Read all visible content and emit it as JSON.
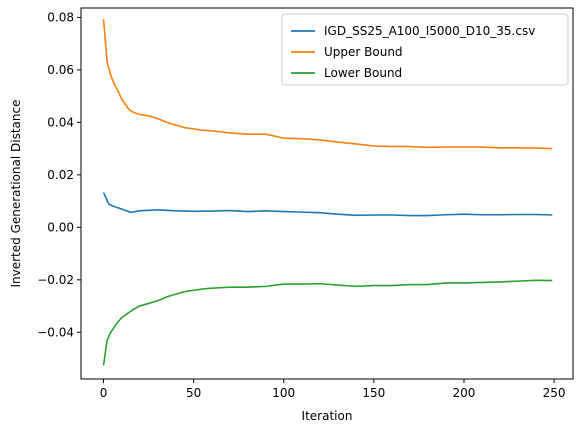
{
  "chart_data": {
    "type": "line",
    "title": "",
    "xlabel": "Iteration",
    "ylabel": "Inverted Generational Distance",
    "xlim": [
      -12.5,
      260.5
    ],
    "ylim": [
      -0.0578,
      0.0836
    ],
    "xticks": [
      0,
      50,
      100,
      150,
      200,
      250
    ],
    "yticks": [
      -0.04,
      -0.02,
      0.0,
      0.02,
      0.04,
      0.06,
      0.08
    ],
    "ytick_labels": [
      "−0.04",
      "−0.02",
      "0.00",
      "0.02",
      "0.04",
      "0.06",
      "0.08"
    ],
    "grid": false,
    "legend_position": "top-right",
    "series": [
      {
        "name": "IGD_SS25_A100_I5000_D10_35.csv",
        "color": "#1f77b4",
        "x": [
          0,
          3,
          5,
          10,
          15,
          20,
          30,
          40,
          50,
          60,
          70,
          80,
          90,
          100,
          110,
          120,
          130,
          140,
          150,
          160,
          170,
          180,
          190,
          200,
          210,
          220,
          230,
          240,
          249
        ],
        "y": [
          0.0133,
          0.0088,
          0.0082,
          0.007,
          0.0057,
          0.0063,
          0.0067,
          0.0063,
          0.0061,
          0.0062,
          0.0064,
          0.006,
          0.0063,
          0.006,
          0.0058,
          0.0056,
          0.005,
          0.0046,
          0.0047,
          0.0047,
          0.0045,
          0.0045,
          0.0048,
          0.005,
          0.0048,
          0.0048,
          0.0049,
          0.0049,
          0.0047
        ]
      },
      {
        "name": "Upper Bound",
        "color": "#ff7f0e",
        "x": [
          0,
          2,
          4,
          6,
          8,
          10,
          12,
          14,
          16,
          20,
          25,
          30,
          35,
          40,
          45,
          50,
          55,
          60,
          70,
          80,
          90,
          100,
          110,
          120,
          130,
          140,
          150,
          160,
          170,
          180,
          190,
          200,
          210,
          220,
          230,
          240,
          249
        ],
        "y": [
          0.0793,
          0.063,
          0.058,
          0.0545,
          0.052,
          0.049,
          0.047,
          0.045,
          0.044,
          0.043,
          0.0425,
          0.0415,
          0.04,
          0.039,
          0.038,
          0.0375,
          0.037,
          0.0368,
          0.036,
          0.0355,
          0.0355,
          0.034,
          0.0338,
          0.0333,
          0.0325,
          0.0318,
          0.031,
          0.0308,
          0.0308,
          0.0305,
          0.0306,
          0.0306,
          0.0306,
          0.0303,
          0.0303,
          0.0302,
          0.03
        ]
      },
      {
        "name": "Lower Bound",
        "color": "#2ca02c",
        "x": [
          0,
          2,
          4,
          6,
          8,
          10,
          12,
          14,
          16,
          20,
          25,
          30,
          35,
          40,
          45,
          50,
          55,
          60,
          70,
          80,
          90,
          100,
          110,
          120,
          130,
          140,
          150,
          160,
          170,
          180,
          190,
          200,
          210,
          220,
          230,
          240,
          249
        ],
        "y": [
          -0.0526,
          -0.043,
          -0.04,
          -0.038,
          -0.036,
          -0.0345,
          -0.0335,
          -0.0325,
          -0.0315,
          -0.03,
          -0.029,
          -0.028,
          -0.0265,
          -0.0255,
          -0.0245,
          -0.024,
          -0.0235,
          -0.0232,
          -0.0228,
          -0.0228,
          -0.0225,
          -0.0216,
          -0.0216,
          -0.0215,
          -0.022,
          -0.0225,
          -0.0222,
          -0.0222,
          -0.0218,
          -0.0218,
          -0.0212,
          -0.0212,
          -0.021,
          -0.0208,
          -0.0205,
          -0.0202,
          -0.0203
        ]
      }
    ]
  }
}
